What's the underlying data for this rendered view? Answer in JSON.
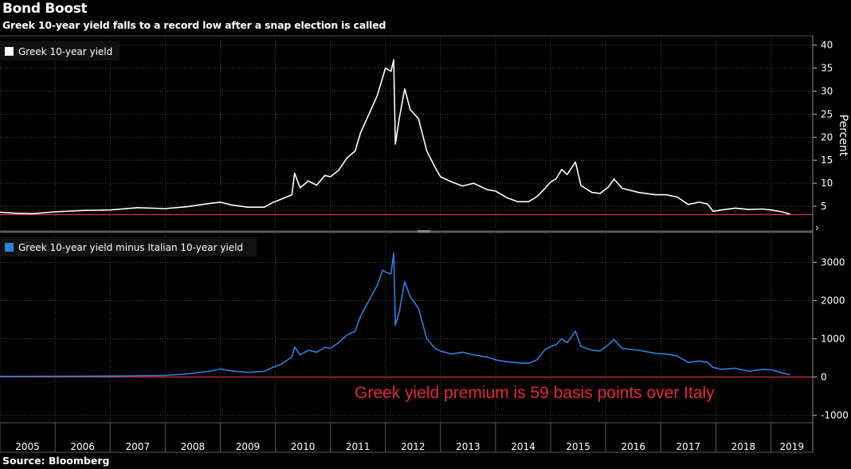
{
  "title": "Bond Boost",
  "subtitle": "Greek 10-year yield falls to a record low after a snap election is called",
  "source": "Source: Bloomberg",
  "colors": {
    "background": "#000000",
    "top_series": "#ffffff",
    "bottom_series": "#2d7fe0",
    "reference_line": "#e0303c",
    "annotation": "#e8253a",
    "grid": "#4a4a4a",
    "separator": "#5a5a5a"
  },
  "chart_data": [
    {
      "type": "line",
      "title": "",
      "legend": "Greek 10-year yield",
      "legend_position": "top-left",
      "ylabel": "Percent",
      "ylim": [
        0,
        42
      ],
      "y_ticks": [
        5,
        10,
        15,
        20,
        25,
        30,
        35,
        40
      ],
      "y_tick_labels": [
        "5",
        "10",
        "15",
        "20",
        "25",
        "30",
        "35",
        "40"
      ],
      "reference_line": 3.2,
      "grid": true,
      "series": [
        {
          "name": "Greek 10-year yield",
          "points": [
            [
              2005.0,
              3.7
            ],
            [
              2005.3,
              3.5
            ],
            [
              2005.6,
              3.4
            ],
            [
              2006.0,
              3.8
            ],
            [
              2006.5,
              4.1
            ],
            [
              2007.0,
              4.2
            ],
            [
              2007.5,
              4.7
            ],
            [
              2008.0,
              4.5
            ],
            [
              2008.4,
              4.9
            ],
            [
              2008.8,
              5.6
            ],
            [
              2009.0,
              5.9
            ],
            [
              2009.2,
              5.3
            ],
            [
              2009.5,
              4.8
            ],
            [
              2009.8,
              4.8
            ],
            [
              2009.95,
              5.8
            ],
            [
              2010.1,
              6.5
            ],
            [
              2010.3,
              7.5
            ],
            [
              2010.35,
              12.2
            ],
            [
              2010.45,
              9.0
            ],
            [
              2010.6,
              10.5
            ],
            [
              2010.75,
              9.6
            ],
            [
              2010.9,
              11.7
            ],
            [
              2011.0,
              11.4
            ],
            [
              2011.15,
              12.8
            ],
            [
              2011.3,
              15.5
            ],
            [
              2011.45,
              17.0
            ],
            [
              2011.55,
              21.0
            ],
            [
              2011.7,
              25.0
            ],
            [
              2011.85,
              29.0
            ],
            [
              2011.95,
              33.0
            ],
            [
              2012.0,
              35.0
            ],
            [
              2012.1,
              34.3
            ],
            [
              2012.15,
              36.8
            ],
            [
              2012.18,
              18.5
            ],
            [
              2012.25,
              24.0
            ],
            [
              2012.35,
              30.5
            ],
            [
              2012.45,
              26.0
            ],
            [
              2012.6,
              24.0
            ],
            [
              2012.75,
              17.0
            ],
            [
              2012.9,
              13.5
            ],
            [
              2013.0,
              11.4
            ],
            [
              2013.2,
              10.3
            ],
            [
              2013.4,
              9.4
            ],
            [
              2013.6,
              10.0
            ],
            [
              2013.85,
              8.6
            ],
            [
              2014.0,
              8.3
            ],
            [
              2014.2,
              6.9
            ],
            [
              2014.4,
              6.0
            ],
            [
              2014.6,
              6.0
            ],
            [
              2014.75,
              7.1
            ],
            [
              2014.9,
              8.9
            ],
            [
              2015.0,
              10.3
            ],
            [
              2015.1,
              11.0
            ],
            [
              2015.2,
              13.0
            ],
            [
              2015.3,
              11.9
            ],
            [
              2015.45,
              14.6
            ],
            [
              2015.55,
              9.5
            ],
            [
              2015.75,
              8.0
            ],
            [
              2015.9,
              7.8
            ],
            [
              2016.05,
              9.2
            ],
            [
              2016.15,
              10.9
            ],
            [
              2016.3,
              8.9
            ],
            [
              2016.6,
              8.0
            ],
            [
              2016.9,
              7.5
            ],
            [
              2017.1,
              7.5
            ],
            [
              2017.3,
              7.0
            ],
            [
              2017.5,
              5.4
            ],
            [
              2017.7,
              5.9
            ],
            [
              2017.85,
              5.5
            ],
            [
              2017.95,
              3.9
            ],
            [
              2018.1,
              4.2
            ],
            [
              2018.35,
              4.6
            ],
            [
              2018.6,
              4.3
            ],
            [
              2018.85,
              4.4
            ],
            [
              2019.0,
              4.2
            ],
            [
              2019.2,
              3.8
            ],
            [
              2019.35,
              3.3
            ]
          ]
        }
      ]
    },
    {
      "type": "line",
      "title": "",
      "legend": "Greek 10-year yield minus Italian 10-year yield",
      "legend_position": "top-left",
      "ylabel": "",
      "ylim": [
        -1200,
        3700
      ],
      "y_ticks": [
        -1000,
        0,
        1000,
        2000,
        3000
      ],
      "y_tick_labels": [
        "-1000",
        "0",
        "1000",
        "2000",
        "3000"
      ],
      "reference_line": 0,
      "annotation": "Greek yield premium is 59 basis points over Italy",
      "grid": true,
      "series": [
        {
          "name": "Greek 10-year yield minus Italian 10-year yield",
          "points": [
            [
              2005.0,
              15
            ],
            [
              2006.0,
              20
            ],
            [
              2007.0,
              25
            ],
            [
              2008.0,
              40
            ],
            [
              2008.4,
              80
            ],
            [
              2008.8,
              150
            ],
            [
              2009.0,
              210
            ],
            [
              2009.2,
              160
            ],
            [
              2009.5,
              120
            ],
            [
              2009.8,
              150
            ],
            [
              2009.95,
              250
            ],
            [
              2010.1,
              330
            ],
            [
              2010.3,
              520
            ],
            [
              2010.35,
              780
            ],
            [
              2010.45,
              580
            ],
            [
              2010.6,
              700
            ],
            [
              2010.75,
              650
            ],
            [
              2010.9,
              780
            ],
            [
              2011.0,
              750
            ],
            [
              2011.15,
              900
            ],
            [
              2011.3,
              1100
            ],
            [
              2011.45,
              1200
            ],
            [
              2011.55,
              1600
            ],
            [
              2011.7,
              2000
            ],
            [
              2011.85,
              2400
            ],
            [
              2011.95,
              2800
            ],
            [
              2012.0,
              2750
            ],
            [
              2012.1,
              2700
            ],
            [
              2012.15,
              3250
            ],
            [
              2012.18,
              1350
            ],
            [
              2012.25,
              1700
            ],
            [
              2012.35,
              2500
            ],
            [
              2012.45,
              2100
            ],
            [
              2012.6,
              1800
            ],
            [
              2012.75,
              1000
            ],
            [
              2012.9,
              750
            ],
            [
              2013.0,
              680
            ],
            [
              2013.2,
              600
            ],
            [
              2013.4,
              650
            ],
            [
              2013.6,
              580
            ],
            [
              2013.85,
              520
            ],
            [
              2014.0,
              450
            ],
            [
              2014.2,
              400
            ],
            [
              2014.4,
              370
            ],
            [
              2014.6,
              360
            ],
            [
              2014.75,
              450
            ],
            [
              2014.9,
              720
            ],
            [
              2015.0,
              800
            ],
            [
              2015.1,
              850
            ],
            [
              2015.2,
              1000
            ],
            [
              2015.3,
              900
            ],
            [
              2015.45,
              1200
            ],
            [
              2015.55,
              800
            ],
            [
              2015.75,
              700
            ],
            [
              2015.9,
              680
            ],
            [
              2016.05,
              850
            ],
            [
              2016.15,
              980
            ],
            [
              2016.3,
              750
            ],
            [
              2016.6,
              700
            ],
            [
              2016.9,
              620
            ],
            [
              2017.1,
              600
            ],
            [
              2017.3,
              550
            ],
            [
              2017.5,
              380
            ],
            [
              2017.7,
              420
            ],
            [
              2017.85,
              380
            ],
            [
              2017.95,
              250
            ],
            [
              2018.1,
              200
            ],
            [
              2018.35,
              230
            ],
            [
              2018.6,
              150
            ],
            [
              2018.85,
              200
            ],
            [
              2019.0,
              190
            ],
            [
              2019.2,
              110
            ],
            [
              2019.35,
              60
            ]
          ]
        }
      ]
    }
  ],
  "x_axis": {
    "years": [
      "2005",
      "2006",
      "2007",
      "2008",
      "2009",
      "2010",
      "2011",
      "2012",
      "2013",
      "2014",
      "2015",
      "2016",
      "2017",
      "2018",
      "2019"
    ],
    "xlim": [
      2005.0,
      2019.76
    ]
  }
}
